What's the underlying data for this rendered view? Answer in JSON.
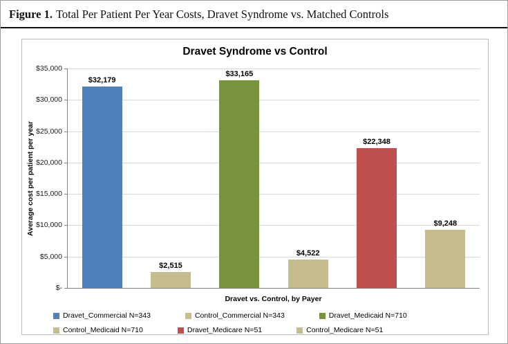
{
  "figure": {
    "label": "Figure 1.",
    "title": "Total Per Patient Per Year Costs, Dravet Syndrome vs. Matched Controls"
  },
  "chart_data": {
    "type": "bar",
    "title": "Dravet Syndrome vs Control",
    "xlabel": "Dravet vs. Control, by Payer",
    "ylabel": "Average cost per patient per year",
    "ylim": [
      0,
      35000
    ],
    "ytick_step": 5000,
    "ytick_labels": [
      "$-",
      "$5,000",
      "$10,000",
      "$15,000",
      "$20,000",
      "$25,000",
      "$30,000",
      "$35,000"
    ],
    "grid": true,
    "legend_position": "bottom",
    "categories": [
      "Dravet_Commercial N=343",
      "Control_Commercial N=343",
      "Dravet_Medicaid N=710",
      "Control_Medicaid N=710",
      "Dravet_Medicare N=51",
      "Control_Medicare N=51"
    ],
    "values": [
      32179,
      2515,
      33165,
      4522,
      22348,
      9248
    ],
    "labels": [
      "$32,179",
      "$2,515",
      "$33,165",
      "$4,522",
      "$22,348",
      "$9,248"
    ],
    "colors": [
      "#4F81BD",
      "#C6BD8F",
      "#77933C",
      "#C6BD8F",
      "#C0504D",
      "#C6BD8F"
    ],
    "legend": [
      {
        "label": "Dravet_Commercial N=343",
        "color": "#4F81BD"
      },
      {
        "label": "Control_Commercial N=343",
        "color": "#C6BD8F"
      },
      {
        "label": "Dravet_Medicaid N=710",
        "color": "#77933C"
      },
      {
        "label": "Control_Medicaid N=710",
        "color": "#C6BD8F"
      },
      {
        "label": "Dravet_Medicare N=51",
        "color": "#C0504D"
      },
      {
        "label": "Control_Medicare N=51",
        "color": "#C6BD8F"
      }
    ]
  }
}
